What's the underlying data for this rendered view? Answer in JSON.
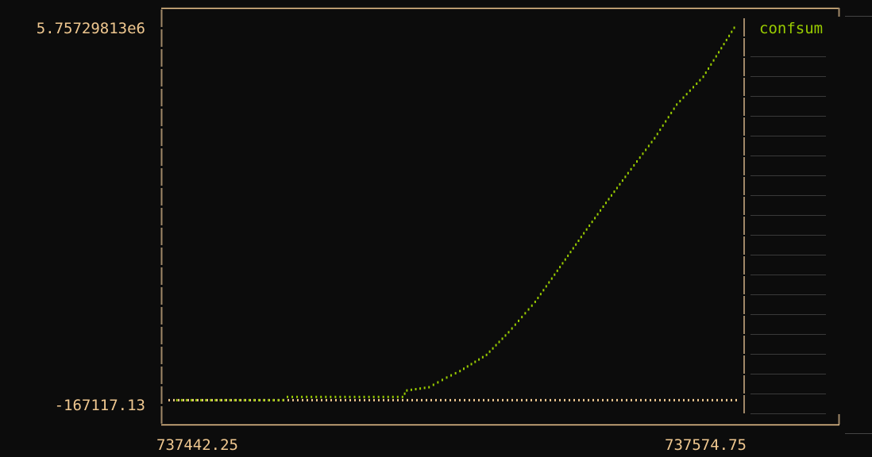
{
  "chart_data": {
    "type": "line",
    "title": "",
    "xlabel": "",
    "ylabel": "",
    "xlim": [
      737442.25,
      737574.75
    ],
    "ylim": [
      -167117.13,
      5757298.13
    ],
    "x_tick_labels": [
      "737442.25",
      "737574.75"
    ],
    "y_tick_labels": [
      "5.75729813e6",
      "-167117.13"
    ],
    "grid": false,
    "legend_position": "right",
    "series": [
      {
        "name": "confsum",
        "color": "#99cc00",
        "x": [
          737444,
          737468,
          737469,
          737495,
          737496,
          737501,
          737505,
          737508,
          737514,
          737519,
          737525,
          737530,
          737536,
          737541,
          737546,
          737552,
          737557,
          737563,
          737570
        ],
        "y": [
          0,
          0,
          50000,
          50000,
          150000,
          200000,
          350000,
          450000,
          700000,
          1050000,
          1520000,
          2000000,
          2580000,
          3050000,
          3510000,
          4050000,
          4570000,
          5000000,
          5757298
        ]
      }
    ],
    "zero_line": {
      "y": 0,
      "color": "#f0c890"
    }
  },
  "colors": {
    "background": "#0c0c0c",
    "axis": "#f0c890",
    "frame": "#a08868",
    "legend_rule": "#3a3a3a"
  }
}
